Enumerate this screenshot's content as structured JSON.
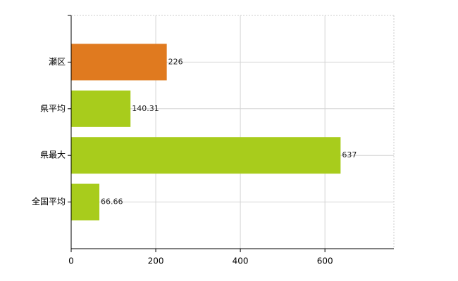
{
  "chart_data": {
    "type": "barh",
    "categories": [
      "瀬区",
      "県平均",
      "県最大",
      "全国平均"
    ],
    "values": [
      226,
      140.31,
      637,
      66.66
    ],
    "colors": [
      "#e07a1f",
      "#a8cc1c",
      "#a8cc1c",
      "#a8cc1c"
    ],
    "xlim": [
      0,
      763
    ],
    "xticks": [
      0,
      200,
      400,
      600
    ],
    "grid": true
  }
}
